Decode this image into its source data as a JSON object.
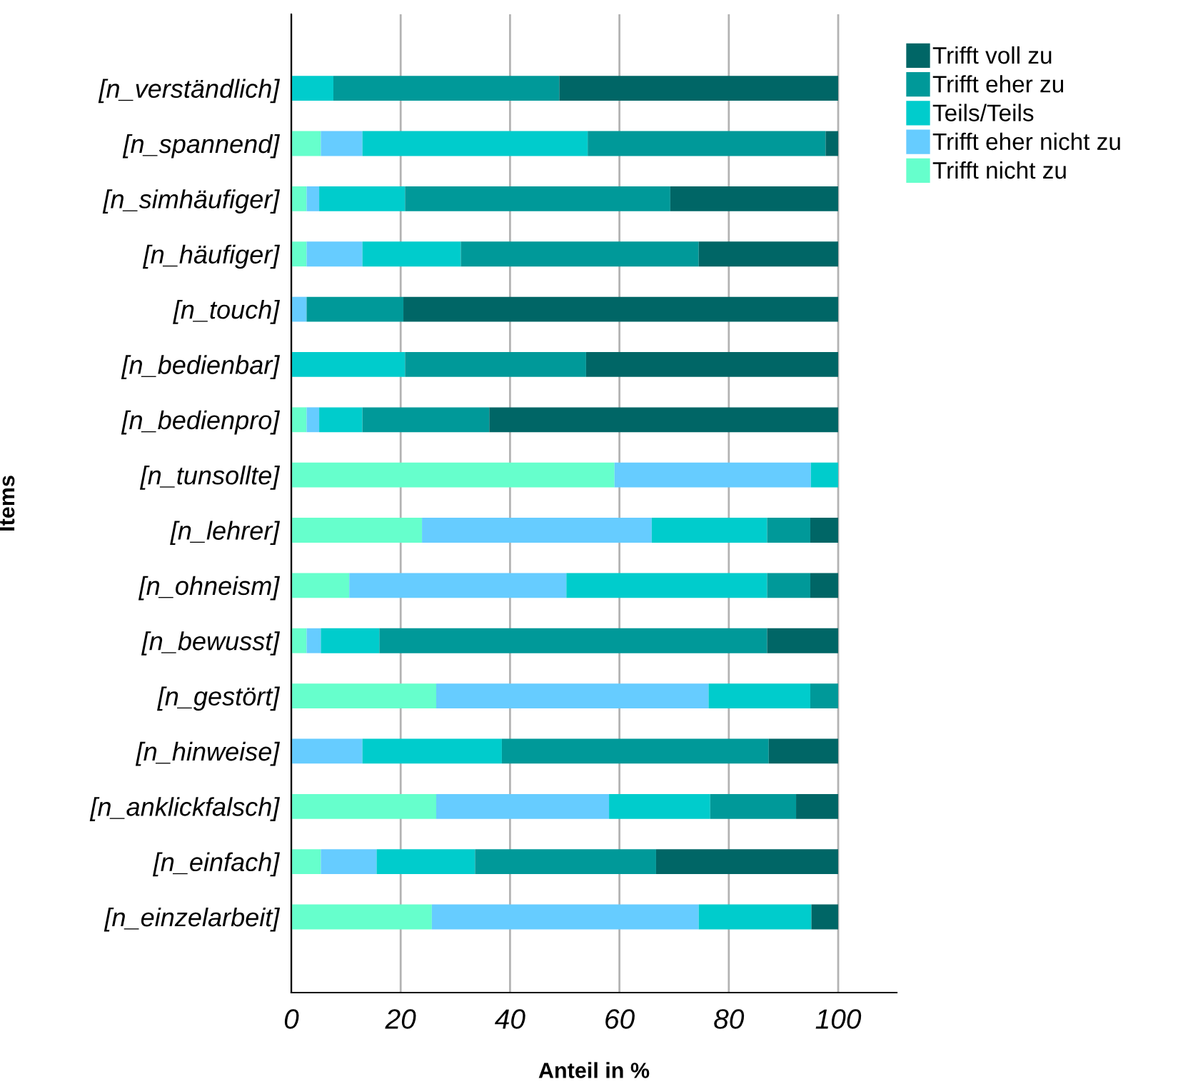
{
  "chart_data": {
    "type": "bar",
    "orientation": "horizontal",
    "stacked": true,
    "xlabel": "Anteil in %",
    "ylabel": "Items",
    "categories": [
      "[n_verständlich]",
      "[n_spannend]",
      "[n_simhäufiger]",
      "[n_häufiger]",
      "[n_touch]",
      "[n_bedienbar]",
      "[n_bedienpro]",
      "[n_tunsollte]",
      "[n_lehrer]",
      "[n_ohneism]",
      "[n_bewusst]",
      "[n_gestört]",
      "[n_hinweise]",
      "[n_anklickfalsch]",
      "[n_einfach]",
      "[n_einzelarbeit]"
    ],
    "series": [
      {
        "name": "Trifft nicht zu",
        "color": "#66ffcc",
        "values": [
          0,
          5.4,
          2.8,
          2.8,
          0,
          0,
          2.8,
          59.1,
          23.9,
          10.6,
          2.8,
          26.5,
          0,
          26.5,
          5.4,
          25.7
        ]
      },
      {
        "name": "Trifft eher nicht zu",
        "color": "#66ccff",
        "values": [
          0,
          7.6,
          2.3,
          10.2,
          2.8,
          0,
          2.3,
          35.9,
          42.0,
          39.7,
          2.6,
          49.8,
          13.0,
          31.6,
          10.2,
          48.8
        ]
      },
      {
        "name": "Teils/Teils",
        "color": "#00cccc",
        "values": [
          7.7,
          41.2,
          15.7,
          18.0,
          0,
          20.8,
          7.9,
          5.0,
          21.1,
          36.7,
          10.7,
          18.6,
          25.5,
          18.5,
          18.0,
          20.6
        ]
      },
      {
        "name": "Trifft eher zu",
        "color": "#009999",
        "values": [
          41.3,
          43.5,
          48.5,
          43.5,
          17.7,
          33.1,
          23.2,
          0,
          7.9,
          7.9,
          70.9,
          5.1,
          48.8,
          15.7,
          33.1,
          0
        ]
      },
      {
        "name": "Trifft voll zu",
        "color": "#006666",
        "values": [
          51.0,
          2.3,
          30.7,
          25.5,
          79.5,
          46.1,
          63.8,
          0,
          5.1,
          5.1,
          13.0,
          0,
          12.7,
          7.7,
          33.3,
          4.9
        ]
      }
    ],
    "xlim": [
      0,
      110.7
    ],
    "xticks": [
      0,
      20,
      40,
      60,
      80,
      100
    ],
    "grid": "x",
    "legend": "top right"
  }
}
